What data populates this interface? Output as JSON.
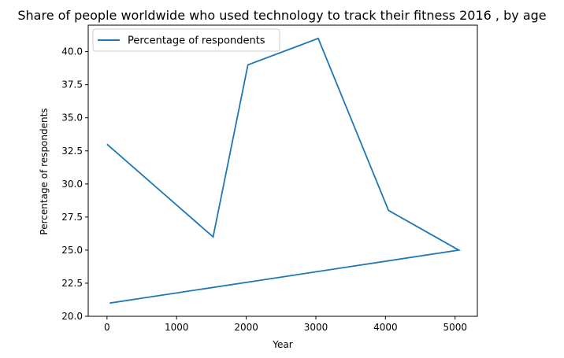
{
  "chart_data": {
    "type": "line",
    "title": "Share of people worldwide who used technology to track their fitness 2016 , by age",
    "xlabel": "Year",
    "ylabel": "Percentage of respondents",
    "xlim": [
      -270,
      5320
    ],
    "ylim": [
      20,
      42
    ],
    "xticks": [
      0,
      1000,
      2000,
      3000,
      4000,
      5000
    ],
    "xtick_labels": [
      "0",
      "1000",
      "2000",
      "3000",
      "4000",
      "5000"
    ],
    "yticks": [
      20.0,
      22.5,
      25.0,
      27.5,
      30.0,
      32.5,
      35.0,
      37.5,
      40.0
    ],
    "ytick_labels": [
      "20.0",
      "22.5",
      "25.0",
      "27.5",
      "30.0",
      "32.5",
      "35.0",
      "37.5",
      "40.0"
    ],
    "grid": false,
    "legend_position": "upper-left",
    "series": [
      {
        "name": "Percentage of respondents",
        "color": "#1f77b4",
        "x": [
          0,
          1524,
          2024,
          3034,
          4044,
          5054,
          40
        ],
        "y": [
          33,
          26,
          39,
          41,
          28,
          25,
          21
        ]
      }
    ]
  }
}
